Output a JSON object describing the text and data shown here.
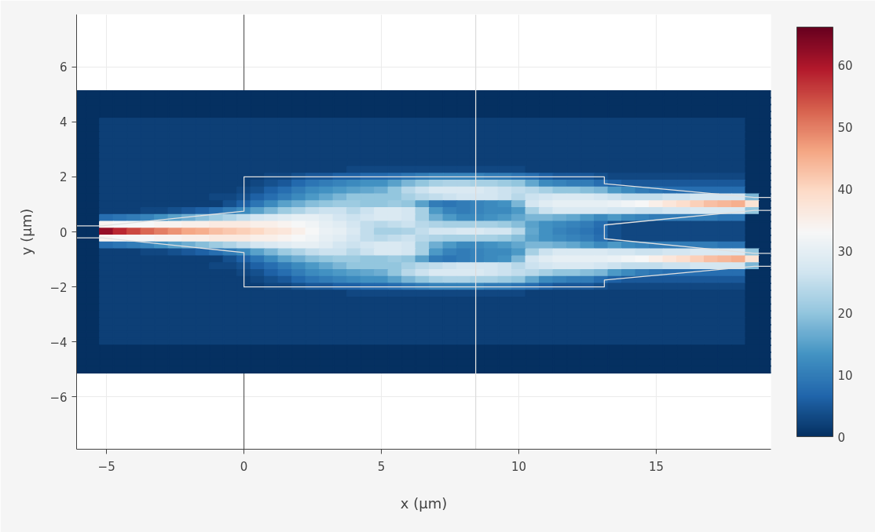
{
  "chart_data": {
    "type": "heatmap",
    "xlabel": "x (µm)",
    "ylabel": "y (µm)",
    "xlim": [
      -6.09,
      19.17
    ],
    "ylim": [
      -7.9,
      7.9
    ],
    "xticks": [
      {
        "value": -5,
        "label": "−5"
      },
      0,
      5,
      10,
      15
    ],
    "yticks": [
      {
        "value": -6,
        "label": "−6"
      },
      {
        "value": -4,
        "label": "−4"
      },
      {
        "value": -2,
        "label": "−2"
      },
      0,
      2,
      4,
      6
    ],
    "grid": true,
    "clim": [
      0,
      66.2
    ],
    "cticks": [
      0,
      10,
      20,
      30,
      40,
      50,
      60
    ],
    "x": [
      -6,
      -5.5,
      -5,
      -4.5,
      -4,
      -3.5,
      -3,
      -2.5,
      -2,
      -1.5,
      -1,
      -0.5,
      0,
      0.5,
      1,
      1.5,
      2,
      2.5,
      3,
      3.5,
      4,
      4.5,
      5,
      5.5,
      6,
      6.5,
      7,
      7.5,
      8,
      8.5,
      9,
      9.5,
      10,
      10.5,
      11,
      11.5,
      12,
      12.5,
      13,
      13.5,
      14,
      14.5,
      15,
      15.5,
      16,
      16.5,
      17,
      17.5,
      18,
      18.5,
      19
    ],
    "y": [
      5,
      4.75,
      4.5,
      4.25,
      4,
      3.75,
      3.5,
      3.25,
      3,
      2.75,
      2.5,
      2.25,
      2,
      1.75,
      1.5,
      1.25,
      1,
      0.75,
      0.5,
      0.25,
      0,
      -0.25,
      -0.5,
      -0.75,
      -1,
      -1.25,
      -1.5,
      -1.75,
      -2,
      -2.25,
      -2.5,
      -2.75,
      -3,
      -3.25,
      -3.5,
      -3.75,
      -4,
      -4.25,
      -4.5,
      -4.75,
      -5
    ],
    "cells": [
      [
        0,
        0,
        0,
        0,
        0,
        0,
        0,
        0,
        0,
        0,
        0,
        0,
        0,
        0,
        0,
        0,
        0,
        0,
        0,
        0,
        0,
        0,
        0,
        0,
        0,
        0,
        0,
        0,
        0,
        0,
        0,
        0,
        0,
        0,
        0,
        0,
        0,
        0,
        0,
        0,
        0,
        0,
        0,
        0,
        0,
        0,
        0,
        0,
        0,
        0,
        0
      ],
      [
        0,
        0,
        0,
        0,
        0,
        0,
        0,
        0,
        0,
        0,
        0,
        0,
        0,
        0,
        0,
        0,
        0,
        0,
        0,
        0,
        0,
        0,
        0,
        0,
        0,
        0,
        0,
        0,
        0,
        0,
        0,
        0,
        0,
        0,
        0,
        0,
        0,
        0,
        0,
        0,
        0,
        0,
        0,
        0,
        0,
        0,
        0,
        0,
        0,
        0,
        0
      ],
      [
        0,
        0,
        0,
        0,
        0,
        0,
        0,
        0,
        0,
        0,
        0,
        0,
        0,
        0,
        0,
        0,
        0,
        0,
        0,
        0,
        0,
        0,
        0,
        0,
        0,
        0,
        0,
        0,
        0,
        0,
        0,
        0,
        0,
        0,
        0,
        0,
        0,
        0,
        0,
        0,
        0,
        0,
        0,
        0,
        0,
        0,
        0,
        0,
        0,
        0,
        0
      ],
      [
        0,
        0,
        0,
        0,
        0,
        0,
        0,
        0,
        0,
        0,
        0,
        0,
        0,
        0,
        0,
        0,
        0,
        0,
        0,
        0,
        0,
        0,
        0,
        0,
        0,
        0,
        0,
        0,
        0,
        0,
        0,
        0,
        0,
        0,
        0,
        0,
        0,
        0,
        0,
        0,
        0,
        0,
        0,
        0,
        0,
        0,
        0,
        0,
        0,
        0,
        0
      ],
      [
        0,
        0,
        2,
        2,
        2,
        2,
        2,
        2,
        2,
        2,
        2,
        2,
        2,
        2,
        2,
        2,
        2,
        2,
        2,
        2,
        2,
        2,
        2,
        2,
        2,
        2,
        2,
        2,
        2,
        2,
        2,
        2,
        2,
        2,
        2,
        2,
        2,
        2,
        2,
        2,
        2,
        2,
        2,
        2,
        2,
        2,
        2,
        2,
        2,
        0,
        0
      ],
      [
        0,
        0,
        2,
        2,
        2,
        2,
        2,
        2,
        2,
        2,
        2,
        2,
        2,
        2,
        2,
        2,
        2,
        2,
        2,
        2,
        2,
        2,
        2,
        2,
        2,
        2,
        2,
        2,
        2,
        2,
        2,
        2,
        2,
        2,
        2,
        2,
        2,
        2,
        2,
        2,
        2,
        2,
        2,
        2,
        2,
        2,
        2,
        2,
        2,
        0,
        0
      ],
      [
        0,
        0,
        2,
        2,
        2,
        2,
        2,
        2,
        2,
        2,
        2,
        2,
        2,
        2,
        2,
        2,
        2,
        2,
        2,
        2,
        2,
        2,
        2,
        2,
        2,
        2,
        2,
        2,
        2,
        2,
        2,
        2,
        2,
        2,
        2,
        2,
        2,
        2,
        2,
        2,
        2,
        2,
        2,
        2,
        2,
        2,
        2,
        2,
        2,
        0,
        0
      ],
      [
        0,
        0,
        2,
        2,
        2,
        2,
        2,
        2,
        2,
        2,
        2,
        2,
        2,
        2,
        2,
        2,
        2,
        2,
        2,
        2,
        2,
        2,
        2,
        2,
        2,
        2,
        2,
        2,
        2,
        2,
        2,
        2,
        2,
        2,
        2,
        2,
        2,
        2,
        2,
        2,
        2,
        2,
        2,
        2,
        2,
        2,
        2,
        2,
        2,
        0,
        0
      ],
      [
        0,
        0,
        2,
        2,
        2,
        2,
        2,
        2,
        2,
        2,
        2,
        2,
        2,
        2,
        2,
        2,
        2,
        2,
        2,
        2,
        2,
        2,
        2,
        2,
        2,
        2,
        2,
        2,
        2,
        2,
        2,
        2,
        2,
        2,
        2,
        2,
        2,
        2,
        2,
        2,
        2,
        2,
        2,
        2,
        2,
        2,
        2,
        2,
        2,
        0,
        0
      ],
      [
        0,
        0,
        2,
        2,
        2,
        2,
        2,
        2,
        2,
        2,
        2,
        2,
        2,
        2,
        2,
        2,
        2,
        2,
        2,
        2,
        2,
        2,
        2,
        2,
        2,
        2,
        2,
        2,
        2,
        2,
        2,
        2,
        2,
        2,
        2,
        2,
        2,
        2,
        2,
        2,
        2,
        2,
        2,
        2,
        2,
        2,
        2,
        2,
        2,
        0,
        0
      ],
      [
        0,
        0,
        2,
        2,
        2,
        2,
        2,
        2,
        2,
        2,
        2,
        2,
        2,
        2,
        2,
        2,
        2,
        2,
        2,
        2,
        2,
        2,
        2,
        2,
        2,
        2,
        2,
        2,
        2,
        2,
        2,
        2,
        2,
        2,
        2,
        2,
        2,
        2,
        2,
        2,
        2,
        2,
        2,
        2,
        2,
        2,
        2,
        2,
        2,
        0,
        0
      ],
      [
        0,
        0,
        2,
        2,
        2,
        2,
        2,
        2,
        2,
        2,
        2,
        2,
        2,
        2,
        2,
        2,
        2,
        2,
        2,
        2,
        3,
        3,
        3,
        3,
        3,
        3,
        3,
        3,
        3,
        3,
        3,
        3,
        3,
        2,
        2,
        2,
        2,
        2,
        2,
        2,
        2,
        2,
        2,
        2,
        2,
        2,
        2,
        2,
        2,
        0,
        0
      ],
      [
        0,
        0,
        2,
        2,
        2,
        2,
        2,
        2,
        2,
        2,
        2,
        2,
        2,
        2,
        3,
        3,
        4,
        5,
        5,
        6,
        6,
        7,
        7,
        8,
        9,
        10,
        11,
        11,
        11,
        11,
        10,
        10,
        9,
        8,
        6,
        5,
        5,
        5,
        4,
        3,
        3,
        3,
        3,
        3,
        3,
        3,
        3,
        3,
        3,
        0,
        0
      ],
      [
        0,
        0,
        2,
        2,
        2,
        2,
        2,
        2,
        2,
        2,
        2,
        2,
        2,
        3,
        4,
        5,
        7,
        9,
        10,
        11,
        12,
        13,
        13,
        15,
        18,
        20,
        22,
        23,
        23,
        22,
        22,
        21,
        20,
        16,
        12,
        11,
        10,
        10,
        8,
        6,
        5,
        5,
        5,
        5,
        5,
        5,
        5,
        5,
        5,
        0,
        0
      ],
      [
        0,
        0,
        2,
        2,
        2,
        2,
        2,
        2,
        2,
        2,
        2,
        2,
        3,
        4,
        6,
        8,
        10,
        12,
        13,
        14,
        15,
        16,
        17,
        20,
        24,
        26,
        28,
        28,
        28,
        28,
        27,
        26,
        25,
        24,
        22,
        20,
        20,
        19,
        18,
        14,
        12,
        10,
        9,
        8,
        8,
        8,
        8,
        8,
        8,
        0,
        0
      ],
      [
        0,
        0,
        2,
        2,
        2,
        2,
        2,
        2,
        2,
        2,
        3,
        3,
        4,
        6,
        8,
        10,
        12,
        14,
        16,
        18,
        20,
        20,
        20,
        20,
        22,
        24,
        25,
        26,
        27,
        27,
        27,
        26,
        24,
        26,
        27,
        28,
        28,
        28,
        27,
        26,
        25,
        25,
        25,
        26,
        26,
        27,
        27,
        27,
        27,
        18,
        0
      ],
      [
        0,
        0,
        2,
        2,
        2,
        2,
        2,
        2,
        2,
        2,
        2,
        4,
        6,
        9,
        12,
        15,
        17,
        19,
        20,
        21,
        21,
        20,
        20,
        21,
        20,
        15,
        10,
        9,
        10,
        11,
        12,
        13,
        18,
        27,
        29,
        30,
        30,
        30,
        30,
        31,
        32,
        33,
        35,
        37,
        39,
        41,
        43,
        44,
        45,
        38,
        0
      ],
      [
        0,
        0,
        2,
        2,
        2,
        3,
        3,
        4,
        5,
        6,
        8,
        10,
        12,
        15,
        18,
        21,
        23,
        25,
        26,
        26,
        24,
        26,
        28,
        28,
        27,
        22,
        14,
        11,
        10,
        11,
        12,
        12,
        14,
        22,
        26,
        28,
        28,
        28,
        28,
        27,
        27,
        26,
        26,
        27,
        27,
        28,
        28,
        28,
        28,
        20,
        0
      ],
      [
        0,
        0,
        8,
        9,
        10,
        11,
        13,
        15,
        17,
        19,
        21,
        23,
        25,
        27,
        28,
        29,
        30,
        30,
        29,
        27,
        26,
        27,
        28,
        28,
        27,
        22,
        17,
        14,
        12,
        12,
        13,
        14,
        16,
        18,
        18,
        17,
        16,
        14,
        12,
        14,
        12,
        11,
        10,
        10,
        10,
        10,
        10,
        9,
        9,
        0,
        0
      ],
      [
        0,
        0,
        34,
        33,
        33,
        33,
        34,
        34,
        35,
        35,
        36,
        36,
        36,
        35,
        35,
        34,
        33,
        32,
        30,
        29,
        27,
        25,
        24,
        25,
        26,
        24,
        23,
        22,
        22,
        22,
        22,
        21,
        19,
        15,
        13,
        12,
        11,
        10,
        8,
        4,
        3,
        3,
        3,
        3,
        3,
        3,
        3,
        3,
        3,
        0,
        0
      ],
      [
        0,
        0,
        62,
        58,
        55,
        52,
        50,
        48,
        46,
        45,
        43,
        42,
        41,
        40,
        38,
        37,
        35,
        33,
        31,
        30,
        28,
        25,
        22,
        22,
        23,
        25,
        27,
        27,
        28,
        28,
        27,
        27,
        24,
        16,
        13,
        11,
        10,
        9,
        7,
        4,
        3,
        3,
        3,
        3,
        3,
        3,
        3,
        3,
        3,
        0,
        0
      ],
      [
        0,
        0,
        34,
        33,
        33,
        33,
        34,
        34,
        35,
        35,
        36,
        36,
        36,
        35,
        35,
        34,
        33,
        32,
        30,
        29,
        27,
        25,
        24,
        25,
        26,
        24,
        23,
        22,
        22,
        22,
        22,
        21,
        19,
        15,
        13,
        12,
        11,
        10,
        8,
        4,
        3,
        3,
        3,
        3,
        3,
        3,
        3,
        3,
        3,
        0,
        0
      ],
      [
        0,
        0,
        8,
        9,
        10,
        11,
        13,
        15,
        17,
        19,
        21,
        23,
        25,
        27,
        28,
        29,
        30,
        30,
        29,
        27,
        26,
        27,
        28,
        28,
        27,
        22,
        17,
        14,
        12,
        12,
        13,
        14,
        16,
        18,
        18,
        17,
        16,
        14,
        12,
        14,
        12,
        11,
        10,
        10,
        10,
        10,
        10,
        9,
        9,
        0,
        0
      ],
      [
        0,
        0,
        2,
        2,
        2,
        3,
        3,
        4,
        5,
        6,
        8,
        10,
        12,
        15,
        18,
        21,
        23,
        25,
        26,
        26,
        24,
        26,
        28,
        28,
        27,
        22,
        14,
        11,
        10,
        11,
        12,
        12,
        14,
        22,
        26,
        28,
        28,
        28,
        28,
        27,
        27,
        26,
        26,
        27,
        27,
        28,
        28,
        28,
        28,
        20,
        0
      ],
      [
        0,
        0,
        2,
        2,
        2,
        2,
        2,
        2,
        2,
        2,
        2,
        4,
        6,
        9,
        12,
        15,
        17,
        19,
        20,
        21,
        21,
        20,
        20,
        21,
        20,
        15,
        10,
        9,
        10,
        11,
        12,
        13,
        18,
        27,
        29,
        30,
        30,
        30,
        30,
        31,
        32,
        33,
        35,
        37,
        39,
        41,
        43,
        44,
        45,
        38,
        0
      ],
      [
        0,
        0,
        2,
        2,
        2,
        2,
        2,
        2,
        2,
        2,
        3,
        3,
        4,
        6,
        8,
        10,
        12,
        14,
        16,
        18,
        20,
        20,
        20,
        20,
        22,
        24,
        25,
        26,
        27,
        27,
        27,
        26,
        24,
        26,
        27,
        28,
        28,
        28,
        27,
        26,
        25,
        25,
        25,
        26,
        26,
        27,
        27,
        27,
        27,
        18,
        0
      ],
      [
        0,
        0,
        2,
        2,
        2,
        2,
        2,
        2,
        2,
        2,
        2,
        2,
        3,
        4,
        6,
        8,
        10,
        12,
        13,
        14,
        15,
        16,
        17,
        20,
        24,
        26,
        28,
        28,
        28,
        28,
        27,
        26,
        25,
        24,
        22,
        20,
        20,
        19,
        18,
        14,
        12,
        10,
        9,
        8,
        8,
        8,
        8,
        8,
        8,
        0,
        0
      ],
      [
        0,
        0,
        2,
        2,
        2,
        2,
        2,
        2,
        2,
        2,
        2,
        2,
        2,
        3,
        4,
        5,
        7,
        9,
        10,
        11,
        12,
        13,
        13,
        15,
        18,
        20,
        22,
        23,
        23,
        22,
        22,
        21,
        20,
        16,
        12,
        11,
        10,
        10,
        8,
        6,
        5,
        5,
        5,
        5,
        5,
        5,
        5,
        5,
        5,
        0,
        0
      ],
      [
        0,
        0,
        2,
        2,
        2,
        2,
        2,
        2,
        2,
        2,
        2,
        2,
        2,
        2,
        3,
        3,
        4,
        5,
        5,
        6,
        6,
        7,
        7,
        8,
        9,
        10,
        11,
        11,
        11,
        11,
        10,
        10,
        9,
        8,
        6,
        5,
        5,
        5,
        4,
        3,
        3,
        3,
        3,
        3,
        3,
        3,
        3,
        3,
        3,
        0,
        0
      ],
      [
        0,
        0,
        2,
        2,
        2,
        2,
        2,
        2,
        2,
        2,
        2,
        2,
        2,
        2,
        2,
        2,
        2,
        2,
        2,
        2,
        3,
        3,
        3,
        3,
        3,
        3,
        3,
        3,
        3,
        3,
        3,
        3,
        3,
        2,
        2,
        2,
        2,
        2,
        2,
        2,
        2,
        2,
        2,
        2,
        2,
        2,
        2,
        2,
        2,
        0,
        0
      ],
      [
        0,
        0,
        2,
        2,
        2,
        2,
        2,
        2,
        2,
        2,
        2,
        2,
        2,
        2,
        2,
        2,
        2,
        2,
        2,
        2,
        2,
        2,
        2,
        2,
        2,
        2,
        2,
        2,
        2,
        2,
        2,
        2,
        2,
        2,
        2,
        2,
        2,
        2,
        2,
        2,
        2,
        2,
        2,
        2,
        2,
        2,
        2,
        2,
        2,
        0,
        0
      ],
      [
        0,
        0,
        2,
        2,
        2,
        2,
        2,
        2,
        2,
        2,
        2,
        2,
        2,
        2,
        2,
        2,
        2,
        2,
        2,
        2,
        2,
        2,
        2,
        2,
        2,
        2,
        2,
        2,
        2,
        2,
        2,
        2,
        2,
        2,
        2,
        2,
        2,
        2,
        2,
        2,
        2,
        2,
        2,
        2,
        2,
        2,
        2,
        2,
        2,
        0,
        0
      ],
      [
        0,
        0,
        2,
        2,
        2,
        2,
        2,
        2,
        2,
        2,
        2,
        2,
        2,
        2,
        2,
        2,
        2,
        2,
        2,
        2,
        2,
        2,
        2,
        2,
        2,
        2,
        2,
        2,
        2,
        2,
        2,
        2,
        2,
        2,
        2,
        2,
        2,
        2,
        2,
        2,
        2,
        2,
        2,
        2,
        2,
        2,
        2,
        2,
        2,
        0,
        0
      ],
      [
        0,
        0,
        2,
        2,
        2,
        2,
        2,
        2,
        2,
        2,
        2,
        2,
        2,
        2,
        2,
        2,
        2,
        2,
        2,
        2,
        2,
        2,
        2,
        2,
        2,
        2,
        2,
        2,
        2,
        2,
        2,
        2,
        2,
        2,
        2,
        2,
        2,
        2,
        2,
        2,
        2,
        2,
        2,
        2,
        2,
        2,
        2,
        2,
        2,
        0,
        0
      ],
      [
        0,
        0,
        2,
        2,
        2,
        2,
        2,
        2,
        2,
        2,
        2,
        2,
        2,
        2,
        2,
        2,
        2,
        2,
        2,
        2,
        2,
        2,
        2,
        2,
        2,
        2,
        2,
        2,
        2,
        2,
        2,
        2,
        2,
        2,
        2,
        2,
        2,
        2,
        2,
        2,
        2,
        2,
        2,
        2,
        2,
        2,
        2,
        2,
        2,
        0,
        0
      ],
      [
        0,
        0,
        2,
        2,
        2,
        2,
        2,
        2,
        2,
        2,
        2,
        2,
        2,
        2,
        2,
        2,
        2,
        2,
        2,
        2,
        2,
        2,
        2,
        2,
        2,
        2,
        2,
        2,
        2,
        2,
        2,
        2,
        2,
        2,
        2,
        2,
        2,
        2,
        2,
        2,
        2,
        2,
        2,
        2,
        2,
        2,
        2,
        2,
        2,
        0,
        0
      ],
      [
        0,
        0,
        2,
        2,
        2,
        2,
        2,
        2,
        2,
        2,
        2,
        2,
        2,
        2,
        2,
        2,
        2,
        2,
        2,
        2,
        2,
        2,
        2,
        2,
        2,
        2,
        2,
        2,
        2,
        2,
        2,
        2,
        2,
        2,
        2,
        2,
        2,
        2,
        2,
        2,
        2,
        2,
        2,
        2,
        2,
        2,
        2,
        2,
        2,
        0,
        0
      ],
      [
        0,
        0,
        0,
        0,
        0,
        0,
        0,
        0,
        0,
        0,
        0,
        0,
        0,
        0,
        0,
        0,
        0,
        0,
        0,
        0,
        0,
        0,
        0,
        0,
        0,
        0,
        0,
        0,
        0,
        0,
        0,
        0,
        0,
        0,
        0,
        0,
        0,
        0,
        0,
        0,
        0,
        0,
        0,
        0,
        0,
        0,
        0,
        0,
        0,
        0,
        0
      ],
      [
        0,
        0,
        0,
        0,
        0,
        0,
        0,
        0,
        0,
        0,
        0,
        0,
        0,
        0,
        0,
        0,
        0,
        0,
        0,
        0,
        0,
        0,
        0,
        0,
        0,
        0,
        0,
        0,
        0,
        0,
        0,
        0,
        0,
        0,
        0,
        0,
        0,
        0,
        0,
        0,
        0,
        0,
        0,
        0,
        0,
        0,
        0,
        0,
        0,
        0,
        0
      ],
      [
        0,
        0,
        0,
        0,
        0,
        0,
        0,
        0,
        0,
        0,
        0,
        0,
        0,
        0,
        0,
        0,
        0,
        0,
        0,
        0,
        0,
        0,
        0,
        0,
        0,
        0,
        0,
        0,
        0,
        0,
        0,
        0,
        0,
        0,
        0,
        0,
        0,
        0,
        0,
        0,
        0,
        0,
        0,
        0,
        0,
        0,
        0,
        0,
        0,
        0,
        0
      ],
      [
        0,
        0,
        0,
        0,
        0,
        0,
        0,
        0,
        0,
        0,
        0,
        0,
        0,
        0,
        0,
        0,
        0,
        0,
        0,
        0,
        0,
        0,
        0,
        0,
        0,
        0,
        0,
        0,
        0,
        0,
        0,
        0,
        0,
        0,
        0,
        0,
        0,
        0,
        0,
        0,
        0,
        0,
        0,
        0,
        0,
        0,
        0,
        0,
        0,
        0,
        0
      ]
    ],
    "series": [
      {
        "type": "line",
        "color": "#e0e0e0",
        "x": [
          -6.09,
          -5.17,
          0,
          0,
          13.11,
          13.11,
          18.57,
          19.17,
          null,
          19.17,
          18.57,
          13.11,
          13.11,
          18.57,
          19.17,
          null,
          19.17,
          18.57,
          13.11,
          13.11,
          0,
          0,
          -5.17,
          -6.09
        ],
        "values": [
          0.22,
          0.22,
          0.75,
          2,
          2,
          1.75,
          1.25,
          1.25,
          null,
          0.78,
          0.78,
          0.25,
          -0.25,
          -0.78,
          -0.78,
          null,
          -1.25,
          -1.25,
          -1.75,
          -2,
          -2,
          -0.75,
          -0.22,
          -0.22
        ]
      },
      {
        "type": "line",
        "color": "#dddddd",
        "x": [
          8.43,
          8.43
        ],
        "values": [
          -7.9,
          7.9
        ]
      }
    ],
    "ref_lines": [
      {
        "axis": "x",
        "value": 0,
        "color": "#444444"
      }
    ]
  }
}
